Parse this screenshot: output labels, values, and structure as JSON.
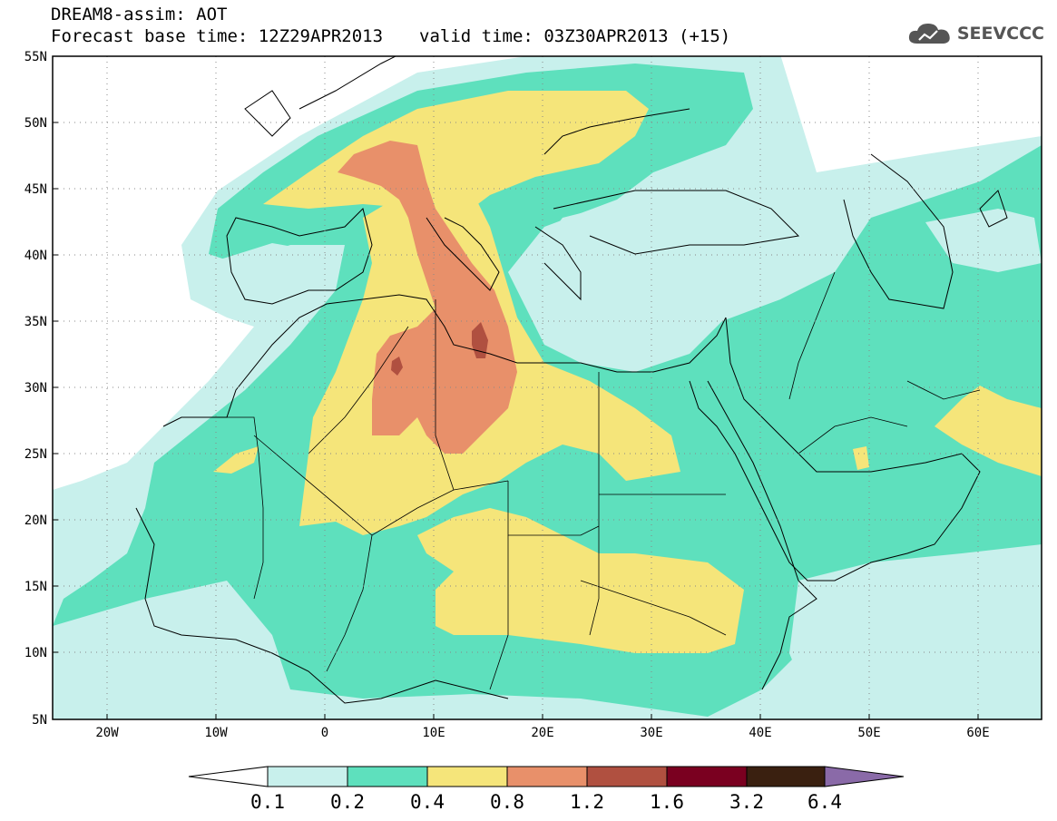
{
  "header": {
    "line1": "DREAM8-assim: AOT",
    "base_time_label": "Forecast base time: 12Z29APR2013",
    "valid_time_label": "valid time: 03Z30APR2013 (+15)"
  },
  "logo": {
    "text": "SEEVCCC",
    "icon": "cloud-icon"
  },
  "map": {
    "lat_labels": [
      "55N",
      "50N",
      "45N",
      "40N",
      "35N",
      "30N",
      "25N",
      "20N",
      "15N",
      "10N",
      "5N"
    ],
    "lon_labels": [
      "20W",
      "10W",
      "0",
      "10E",
      "20E",
      "30E",
      "40E",
      "50E",
      "60E"
    ],
    "grid": "dotted",
    "background_color": "#c8f0ec"
  },
  "colorbar": {
    "labels": [
      "0.1",
      "0.2",
      "0.4",
      "0.8",
      "1.2",
      "1.6",
      "3.2",
      "6.4"
    ],
    "colors": [
      "#ffffff",
      "#c8f0ec",
      "#5ee0bd",
      "#f5e57a",
      "#e8906a",
      "#b05040",
      "#7a0020",
      "#3a2010",
      "#8a6aa8"
    ]
  },
  "palette": {
    "c01": "#c8f0ec",
    "c02": "#5ee0bd",
    "c04": "#f5e57a",
    "c08": "#e8906a",
    "c12": "#b05040"
  }
}
